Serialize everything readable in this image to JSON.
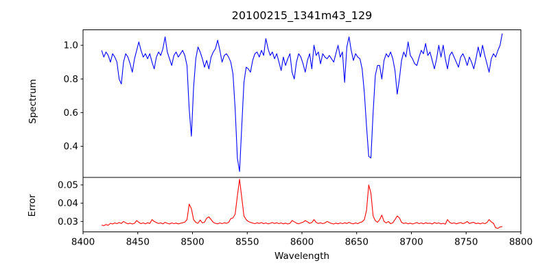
{
  "figure": {
    "title": "20100215_1341m43_129",
    "xlabel": "Wavelength",
    "spectrum_ylabel": "Spectrum",
    "error_ylabel": "Error",
    "background_color": "#ffffff",
    "frame_color": "#000000"
  },
  "chart_data": {
    "type": "line",
    "title": "20100215_1341m43_129",
    "xlabel": "Wavelength",
    "legend": "none",
    "grid": false,
    "xlim": [
      8400,
      8800
    ],
    "xticks": [
      8400,
      8450,
      8500,
      8550,
      8600,
      8650,
      8700,
      8750,
      8800
    ],
    "xtick_labels": [
      "8400",
      "8450",
      "8500",
      "8550",
      "8600",
      "8650",
      "8700",
      "8750",
      "8800"
    ],
    "x_start": 8417,
    "x_step": 2,
    "panels": [
      {
        "name": "spectrum",
        "ylabel": "Spectrum",
        "color": "#0000ff",
        "ylim": [
          0.215,
          1.092
        ],
        "yticks": [
          0.4,
          0.6,
          0.8,
          1.0
        ],
        "ytick_labels": [
          "0.4",
          "0.6",
          "0.8",
          "1.0"
        ],
        "absorption_lines": [
          {
            "wavelength": 8434,
            "depth": 0.77
          },
          {
            "wavelength": 8498,
            "depth": 0.46
          },
          {
            "wavelength": 8542,
            "depth": 0.25
          },
          {
            "wavelength": 8662,
            "depth": 0.33
          },
          {
            "wavelength": 8687,
            "depth": 0.71
          }
        ],
        "values": [
          0.97,
          0.93,
          0.96,
          0.94,
          0.9,
          0.95,
          0.93,
          0.9,
          0.8,
          0.77,
          0.9,
          0.95,
          0.93,
          0.89,
          0.84,
          0.92,
          0.97,
          1.02,
          0.97,
          0.93,
          0.95,
          0.92,
          0.95,
          0.9,
          0.86,
          0.93,
          0.96,
          0.94,
          0.98,
          1.05,
          0.96,
          0.92,
          0.88,
          0.94,
          0.96,
          0.93,
          0.95,
          0.97,
          0.94,
          0.88,
          0.62,
          0.46,
          0.75,
          0.92,
          0.99,
          0.96,
          0.92,
          0.87,
          0.91,
          0.86,
          0.93,
          0.96,
          0.98,
          1.03,
          0.97,
          0.9,
          0.94,
          0.95,
          0.93,
          0.9,
          0.83,
          0.62,
          0.33,
          0.25,
          0.52,
          0.78,
          0.87,
          0.86,
          0.84,
          0.91,
          0.95,
          0.96,
          0.93,
          0.97,
          0.94,
          1.04,
          0.98,
          0.94,
          0.96,
          0.92,
          0.95,
          0.9,
          0.85,
          0.93,
          0.88,
          0.92,
          0.95,
          0.84,
          0.8,
          0.9,
          0.95,
          0.93,
          0.89,
          0.84,
          0.91,
          0.95,
          0.86,
          1.0,
          0.94,
          0.96,
          0.89,
          0.95,
          0.93,
          0.92,
          0.94,
          0.92,
          0.9,
          0.95,
          1.0,
          0.93,
          0.96,
          0.78,
          0.99,
          1.05,
          0.97,
          0.91,
          0.95,
          0.93,
          0.92,
          0.86,
          0.72,
          0.52,
          0.34,
          0.33,
          0.6,
          0.82,
          0.88,
          0.88,
          0.8,
          0.91,
          0.95,
          0.93,
          0.96,
          0.92,
          0.85,
          0.71,
          0.8,
          0.91,
          0.96,
          0.93,
          1.02,
          0.94,
          0.92,
          0.89,
          0.88,
          0.93,
          0.97,
          0.95,
          1.01,
          0.94,
          0.96,
          0.91,
          0.86,
          0.92,
          1.0,
          0.93,
          1.0,
          0.92,
          0.86,
          0.94,
          0.96,
          0.93,
          0.9,
          0.87,
          0.93,
          0.95,
          0.92,
          0.88,
          0.93,
          0.9,
          0.86,
          0.92,
          0.99,
          0.93,
          1.0,
          0.94,
          0.89,
          0.84,
          0.92,
          0.95,
          0.93,
          0.97,
          1.0,
          1.07
        ]
      },
      {
        "name": "error",
        "ylabel": "Error",
        "color": "#ff0000",
        "ylim": [
          0.0243,
          0.0541
        ],
        "yticks": [
          0.03,
          0.04,
          0.05
        ],
        "ytick_labels": [
          "0.03",
          "0.04",
          "0.05"
        ],
        "peaks": [
          {
            "wavelength": 8497,
            "value": 0.0395
          },
          {
            "wavelength": 8543,
            "value": 0.0531
          },
          {
            "wavelength": 8661,
            "value": 0.05
          }
        ],
        "values": [
          0.028,
          0.0277,
          0.0283,
          0.0279,
          0.029,
          0.0286,
          0.0292,
          0.0288,
          0.0294,
          0.0289,
          0.03,
          0.0293,
          0.0287,
          0.0291,
          0.0286,
          0.029,
          0.0305,
          0.0295,
          0.0288,
          0.0292,
          0.0287,
          0.0293,
          0.0289,
          0.031,
          0.03,
          0.0294,
          0.0289,
          0.0292,
          0.0287,
          0.0295,
          0.029,
          0.0286,
          0.0292,
          0.0288,
          0.0291,
          0.0287,
          0.029,
          0.0293,
          0.0296,
          0.031,
          0.0395,
          0.037,
          0.031,
          0.0295,
          0.029,
          0.0308,
          0.0292,
          0.0296,
          0.0318,
          0.0325,
          0.031,
          0.0295,
          0.029,
          0.0287,
          0.0292,
          0.0288,
          0.0293,
          0.029,
          0.0295,
          0.0315,
          0.032,
          0.034,
          0.044,
          0.0531,
          0.043,
          0.033,
          0.031,
          0.03,
          0.0295,
          0.0291,
          0.0288,
          0.0293,
          0.0289,
          0.0294,
          0.0288,
          0.0292,
          0.0287,
          0.029,
          0.0294,
          0.0289,
          0.0293,
          0.0288,
          0.0292,
          0.0287,
          0.0291,
          0.0286,
          0.029,
          0.0305,
          0.0298,
          0.0291,
          0.0287,
          0.0292,
          0.0296,
          0.0305,
          0.0298,
          0.029,
          0.0294,
          0.031,
          0.0295,
          0.0289,
          0.0293,
          0.0288,
          0.0292,
          0.03,
          0.0294,
          0.0289,
          0.0286,
          0.0291,
          0.0287,
          0.0292,
          0.0288,
          0.0293,
          0.0289,
          0.0295,
          0.029,
          0.0287,
          0.0292,
          0.0288,
          0.0294,
          0.0298,
          0.031,
          0.036,
          0.05,
          0.0455,
          0.033,
          0.0305,
          0.0295,
          0.031,
          0.0335,
          0.03,
          0.0292,
          0.03,
          0.0288,
          0.0293,
          0.031,
          0.033,
          0.032,
          0.0295,
          0.0289,
          0.0292,
          0.0287,
          0.0291,
          0.0286,
          0.029,
          0.0294,
          0.0288,
          0.0292,
          0.0287,
          0.0293,
          0.0289,
          0.0291,
          0.0286,
          0.0294,
          0.0289,
          0.0292,
          0.0287,
          0.029,
          0.0285,
          0.031,
          0.0295,
          0.0289,
          0.0292,
          0.0287,
          0.0291,
          0.0294,
          0.0288,
          0.0292,
          0.03,
          0.0289,
          0.0293,
          0.0295,
          0.0288,
          0.0291,
          0.0287,
          0.0292,
          0.0288,
          0.0294,
          0.031,
          0.0298,
          0.029,
          0.0265,
          0.0262,
          0.027,
          0.0272
        ]
      }
    ]
  }
}
